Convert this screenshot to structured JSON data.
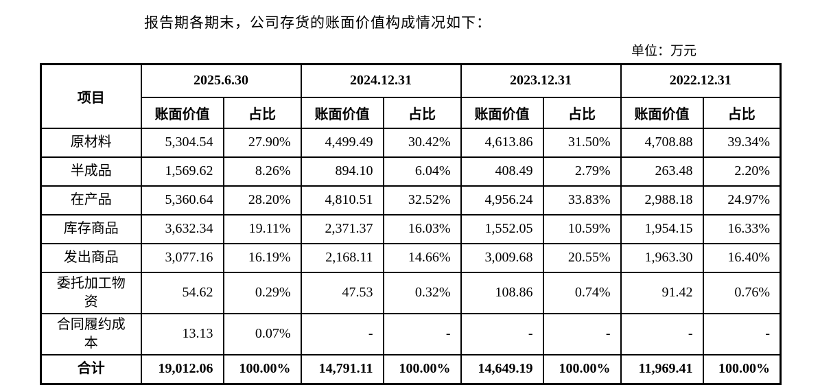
{
  "page": {
    "title": "报告期各期末，公司存货的账面价值构成情况如下：",
    "unit_label": "单位：万元"
  },
  "table": {
    "item_header": "项目",
    "periods": [
      "2025.6.30",
      "2024.12.31",
      "2023.12.31",
      "2022.12.31"
    ],
    "sub_header_value": "账面价值",
    "sub_header_ratio": "占比",
    "rows": [
      {
        "label": "原材料",
        "bold": false,
        "cells": [
          "5,304.54",
          "27.90%",
          "4,499.49",
          "30.42%",
          "4,613.86",
          "31.50%",
          "4,708.88",
          "39.34%"
        ]
      },
      {
        "label": "半成品",
        "bold": false,
        "cells": [
          "1,569.62",
          "8.26%",
          "894.10",
          "6.04%",
          "408.49",
          "2.79%",
          "263.48",
          "2.20%"
        ]
      },
      {
        "label": "在产品",
        "bold": false,
        "cells": [
          "5,360.64",
          "28.20%",
          "4,810.51",
          "32.52%",
          "4,956.24",
          "33.83%",
          "2,988.18",
          "24.97%"
        ]
      },
      {
        "label": "库存商品",
        "bold": false,
        "cells": [
          "3,632.34",
          "19.11%",
          "2,371.37",
          "16.03%",
          "1,552.05",
          "10.59%",
          "1,954.15",
          "16.33%"
        ]
      },
      {
        "label": "发出商品",
        "bold": false,
        "cells": [
          "3,077.16",
          "16.19%",
          "2,168.11",
          "14.66%",
          "3,009.68",
          "20.55%",
          "1,963.30",
          "16.40%"
        ]
      },
      {
        "label": "委托加工物资",
        "bold": false,
        "cells": [
          "54.62",
          "0.29%",
          "47.53",
          "0.32%",
          "108.86",
          "0.74%",
          "91.42",
          "0.76%"
        ]
      },
      {
        "label": "合同履约成本",
        "bold": false,
        "cells": [
          "13.13",
          "0.07%",
          "-",
          "-",
          "-",
          "-",
          "-",
          "-"
        ]
      },
      {
        "label": "合计",
        "bold": true,
        "cells": [
          "19,012.06",
          "100.00%",
          "14,791.11",
          "100.00%",
          "14,649.19",
          "100.00%",
          "11,969.41",
          "100.00%"
        ]
      }
    ]
  },
  "colors": {
    "text": "#000000",
    "border": "#000000",
    "background": "#ffffff"
  }
}
